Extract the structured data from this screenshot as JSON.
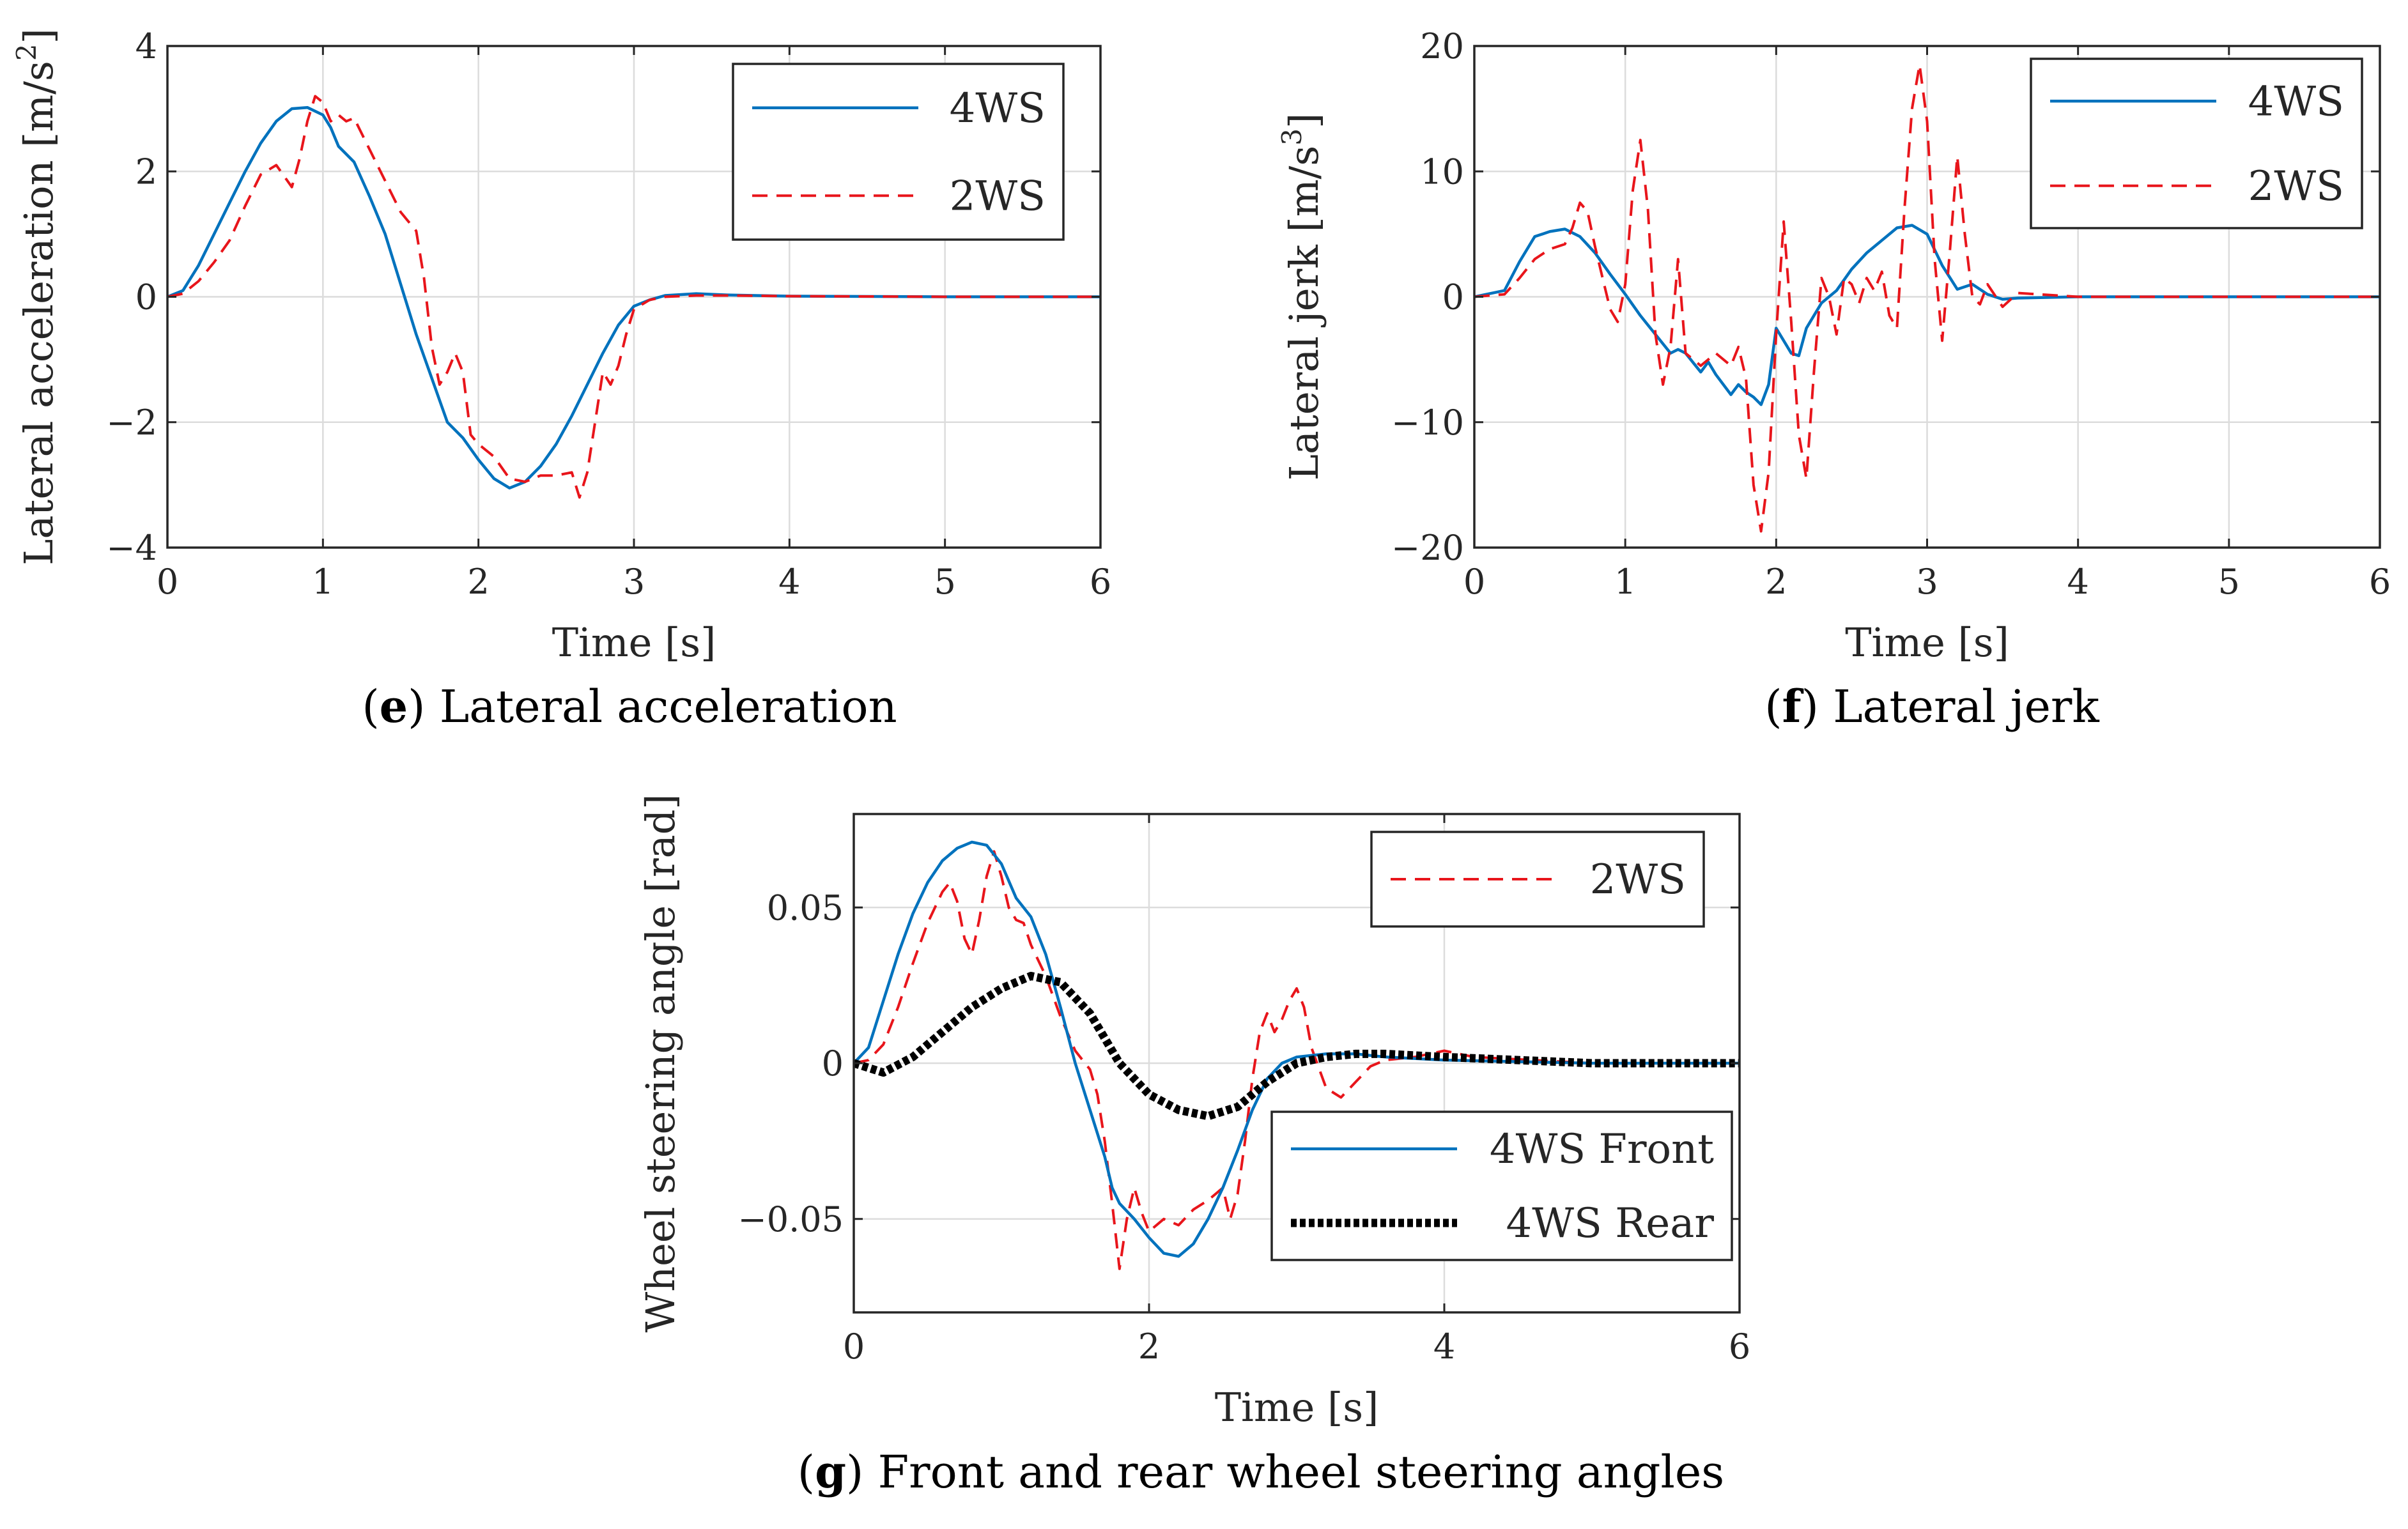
{
  "chart_data": [
    {
      "id": "e",
      "type": "line",
      "caption_letter": "e",
      "caption_text": "Lateral acceleration",
      "xlabel": "Time [s]",
      "ylabel": "Lateral acceleration [m/s",
      "ylabel_sup": "2",
      "ylabel_close": "]",
      "xlim": [
        0,
        6
      ],
      "ylim": [
        -4,
        4
      ],
      "xticks": [
        0,
        1,
        2,
        3,
        4,
        5,
        6
      ],
      "yticks": [
        -4,
        -2,
        0,
        2,
        4
      ],
      "ytick_labels": [
        "−4",
        "−2",
        "0",
        "2",
        "4"
      ],
      "grid": true,
      "legend_position": "top-right",
      "series": [
        {
          "name": "4WS",
          "color": "#0072BD",
          "style": "solid",
          "x": [
            0,
            0.1,
            0.2,
            0.3,
            0.4,
            0.5,
            0.6,
            0.7,
            0.8,
            0.9,
            1.0,
            1.05,
            1.1,
            1.2,
            1.3,
            1.4,
            1.5,
            1.6,
            1.7,
            1.8,
            1.9,
            2.0,
            2.1,
            2.2,
            2.3,
            2.4,
            2.5,
            2.6,
            2.7,
            2.8,
            2.9,
            3.0,
            3.1,
            3.2,
            3.4,
            3.6,
            4.0,
            5.0,
            6.0
          ],
          "y": [
            0,
            0.1,
            0.5,
            1.0,
            1.5,
            2.0,
            2.45,
            2.8,
            3.0,
            3.02,
            2.9,
            2.7,
            2.4,
            2.15,
            1.6,
            1.0,
            0.2,
            -0.6,
            -1.3,
            -2.0,
            -2.25,
            -2.6,
            -2.9,
            -3.05,
            -2.95,
            -2.7,
            -2.35,
            -1.9,
            -1.4,
            -0.9,
            -0.45,
            -0.15,
            -0.05,
            0.02,
            0.05,
            0.03,
            0.01,
            0,
            0
          ]
        },
        {
          "name": "2WS",
          "color": "#E8151B",
          "style": "dashed",
          "x": [
            0,
            0.1,
            0.2,
            0.3,
            0.4,
            0.5,
            0.6,
            0.7,
            0.8,
            0.85,
            0.9,
            0.95,
            1.0,
            1.05,
            1.1,
            1.15,
            1.2,
            1.3,
            1.4,
            1.5,
            1.6,
            1.65,
            1.7,
            1.75,
            1.8,
            1.85,
            1.9,
            1.95,
            2.0,
            2.1,
            2.2,
            2.3,
            2.4,
            2.5,
            2.6,
            2.65,
            2.7,
            2.75,
            2.8,
            2.85,
            2.9,
            2.95,
            3.0,
            3.1,
            3.2,
            3.4,
            3.6,
            4.0,
            5.0,
            6.0
          ],
          "y": [
            0,
            0.05,
            0.25,
            0.55,
            0.9,
            1.45,
            1.95,
            2.1,
            1.75,
            2.2,
            2.8,
            3.2,
            3.1,
            2.8,
            2.9,
            2.8,
            2.85,
            2.35,
            1.85,
            1.35,
            1.05,
            0.3,
            -0.8,
            -1.4,
            -1.2,
            -0.9,
            -1.2,
            -2.2,
            -2.35,
            -2.55,
            -2.9,
            -2.95,
            -2.85,
            -2.85,
            -2.8,
            -3.2,
            -2.8,
            -2.0,
            -1.2,
            -1.4,
            -1.1,
            -0.6,
            -0.2,
            -0.05,
            0,
            0.02,
            0.02,
            0.01,
            0,
            0
          ]
        }
      ]
    },
    {
      "id": "f",
      "type": "line",
      "caption_letter": "f",
      "caption_text": "Lateral jerk",
      "xlabel": "Time [s]",
      "ylabel": "Lateral jerk [m/s",
      "ylabel_sup": "3",
      "ylabel_close": "]",
      "xlim": [
        0,
        6
      ],
      "ylim": [
        -20,
        20
      ],
      "xticks": [
        0,
        1,
        2,
        3,
        4,
        5,
        6
      ],
      "yticks": [
        -20,
        -10,
        0,
        10,
        20
      ],
      "ytick_labels": [
        "−20",
        "−10",
        "0",
        "10",
        "20"
      ],
      "grid": true,
      "legend_position": "top-right",
      "series": [
        {
          "name": "4WS",
          "color": "#0072BD",
          "style": "solid",
          "x": [
            0,
            0.2,
            0.3,
            0.4,
            0.5,
            0.6,
            0.7,
            0.8,
            0.9,
            1.0,
            1.1,
            1.2,
            1.3,
            1.35,
            1.4,
            1.5,
            1.55,
            1.6,
            1.7,
            1.75,
            1.8,
            1.85,
            1.9,
            1.95,
            2.0,
            2.05,
            2.1,
            2.15,
            2.2,
            2.3,
            2.4,
            2.5,
            2.6,
            2.7,
            2.8,
            2.9,
            3.0,
            3.1,
            3.2,
            3.3,
            3.4,
            3.5,
            3.6,
            4.0,
            6.0
          ],
          "y": [
            0,
            0.5,
            2.8,
            4.8,
            5.2,
            5.4,
            4.8,
            3.5,
            1.8,
            0.2,
            -1.5,
            -3.0,
            -4.5,
            -4.2,
            -4.5,
            -6.0,
            -5.2,
            -6.2,
            -7.8,
            -7.0,
            -7.6,
            -8.0,
            -8.6,
            -7.0,
            -2.5,
            -3.5,
            -4.5,
            -4.7,
            -2.5,
            -0.5,
            0.5,
            2.2,
            3.5,
            4.5,
            5.5,
            5.7,
            5.0,
            2.5,
            0.6,
            1.0,
            0.2,
            -0.2,
            -0.1,
            0,
            0
          ]
        },
        {
          "name": "2WS",
          "color": "#E8151B",
          "style": "dashed",
          "x": [
            0,
            0.2,
            0.3,
            0.4,
            0.5,
            0.6,
            0.65,
            0.7,
            0.75,
            0.8,
            0.85,
            0.9,
            0.95,
            1.0,
            1.05,
            1.1,
            1.15,
            1.2,
            1.25,
            1.3,
            1.35,
            1.4,
            1.5,
            1.6,
            1.7,
            1.75,
            1.8,
            1.85,
            1.9,
            1.95,
            2.0,
            2.05,
            2.1,
            2.15,
            2.2,
            2.25,
            2.3,
            2.35,
            2.4,
            2.45,
            2.5,
            2.55,
            2.6,
            2.65,
            2.7,
            2.75,
            2.8,
            2.85,
            2.9,
            2.95,
            3.0,
            3.05,
            3.1,
            3.15,
            3.2,
            3.25,
            3.3,
            3.35,
            3.4,
            3.5,
            3.6,
            4.0,
            6.0
          ],
          "y": [
            0,
            0.2,
            1.5,
            3.0,
            3.8,
            4.2,
            5.5,
            7.5,
            6.8,
            4.0,
            1.5,
            -1.0,
            -2.0,
            1.0,
            8.5,
            12.5,
            7.0,
            -3.0,
            -7.0,
            -4.0,
            3.0,
            -4.5,
            -5.5,
            -4.5,
            -5.5,
            -4.0,
            -6.5,
            -15.0,
            -18.7,
            -14.0,
            -3.0,
            6.0,
            -2.0,
            -11.0,
            -14.5,
            -6.0,
            1.5,
            0.0,
            -3.0,
            1.5,
            1.0,
            -0.5,
            1.5,
            0.5,
            2.0,
            -1.5,
            -2.5,
            7.0,
            15.0,
            18.5,
            14.0,
            3.0,
            -3.5,
            3.5,
            11.2,
            5.0,
            0.0,
            -0.6,
            1.0,
            -0.8,
            0.3,
            0,
            0
          ]
        }
      ]
    },
    {
      "id": "g",
      "type": "line",
      "caption_letter": "g",
      "caption_text": "Front and rear wheel steering angles",
      "xlabel": "Time [s]",
      "ylabel": "Wheel steering angle [rad]",
      "xlim": [
        0,
        6
      ],
      "ylim": [
        -0.08,
        0.08
      ],
      "xticks": [
        0,
        2,
        4,
        6
      ],
      "yticks": [
        -0.05,
        0,
        0.05
      ],
      "ytick_labels": [
        "−0.05",
        "0",
        "0.05"
      ],
      "grid": true,
      "legend_position": "top-right / bottom-right",
      "series": [
        {
          "name": "2WS",
          "color": "#E8151B",
          "style": "dashed",
          "x": [
            0,
            0.1,
            0.2,
            0.3,
            0.4,
            0.5,
            0.6,
            0.65,
            0.7,
            0.75,
            0.8,
            0.85,
            0.9,
            0.95,
            1.0,
            1.05,
            1.1,
            1.15,
            1.2,
            1.3,
            1.4,
            1.5,
            1.6,
            1.65,
            1.7,
            1.75,
            1.8,
            1.85,
            1.9,
            1.95,
            2.0,
            2.1,
            2.2,
            2.3,
            2.4,
            2.5,
            2.55,
            2.6,
            2.65,
            2.7,
            2.75,
            2.8,
            2.85,
            2.9,
            2.95,
            3.0,
            3.05,
            3.1,
            3.2,
            3.3,
            3.4,
            3.5,
            3.6,
            3.8,
            4.0,
            4.2,
            5.0,
            6.0
          ],
          "y": [
            0,
            0.001,
            0.006,
            0.018,
            0.032,
            0.045,
            0.055,
            0.058,
            0.052,
            0.04,
            0.035,
            0.046,
            0.06,
            0.068,
            0.06,
            0.05,
            0.046,
            0.045,
            0.038,
            0.028,
            0.015,
            0.004,
            -0.002,
            -0.01,
            -0.025,
            -0.045,
            -0.066,
            -0.05,
            -0.04,
            -0.048,
            -0.054,
            -0.05,
            -0.052,
            -0.047,
            -0.044,
            -0.04,
            -0.05,
            -0.042,
            -0.025,
            -0.005,
            0.01,
            0.016,
            0.01,
            0.014,
            0.02,
            0.024,
            0.018,
            0.005,
            -0.008,
            -0.011,
            -0.006,
            -0.001,
            0.001,
            0.002,
            0.004,
            0.002,
            0,
            0
          ]
        },
        {
          "name": "4WS Front",
          "color": "#0072BD",
          "style": "solid",
          "x": [
            0,
            0.1,
            0.2,
            0.3,
            0.4,
            0.5,
            0.6,
            0.7,
            0.8,
            0.9,
            1.0,
            1.1,
            1.2,
            1.3,
            1.4,
            1.5,
            1.6,
            1.7,
            1.75,
            1.8,
            1.9,
            2.0,
            2.1,
            2.2,
            2.3,
            2.4,
            2.5,
            2.6,
            2.7,
            2.8,
            2.9,
            3.0,
            3.2,
            3.4,
            3.6,
            4.0,
            5.0,
            6.0
          ],
          "y": [
            0,
            0.005,
            0.02,
            0.035,
            0.048,
            0.058,
            0.065,
            0.069,
            0.071,
            0.07,
            0.064,
            0.053,
            0.047,
            0.035,
            0.018,
            0.0,
            -0.015,
            -0.03,
            -0.04,
            -0.045,
            -0.05,
            -0.056,
            -0.061,
            -0.062,
            -0.058,
            -0.05,
            -0.04,
            -0.028,
            -0.015,
            -0.005,
            0.0,
            0.002,
            0.003,
            0.003,
            0.002,
            0.001,
            0,
            0
          ]
        },
        {
          "name": "4WS Rear",
          "color": "#000000",
          "style": "dotted",
          "x": [
            0,
            0.2,
            0.4,
            0.6,
            0.8,
            1.0,
            1.2,
            1.4,
            1.6,
            1.8,
            2.0,
            2.2,
            2.4,
            2.6,
            2.8,
            3.0,
            3.2,
            3.4,
            3.6,
            4.0,
            4.5,
            5.0,
            6.0
          ],
          "y": [
            0,
            -0.003,
            0.002,
            0.01,
            0.018,
            0.024,
            0.028,
            0.026,
            0.016,
            0.0,
            -0.01,
            -0.015,
            -0.017,
            -0.014,
            -0.006,
            0.0,
            0.002,
            0.003,
            0.003,
            0.002,
            0.001,
            0,
            0
          ]
        }
      ]
    }
  ]
}
